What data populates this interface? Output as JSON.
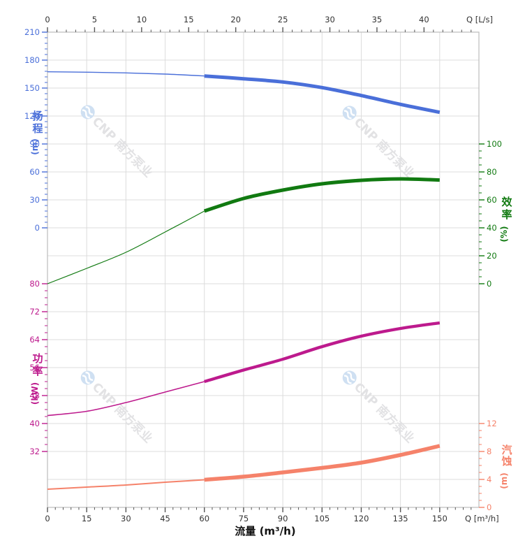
{
  "chart_data": {
    "type": "line",
    "x_range_m3h": [
      0,
      165
    ],
    "x_m3h": [
      0,
      15,
      30,
      45,
      60,
      75,
      90,
      105,
      120,
      135,
      150
    ],
    "bold_from_m3h": 60,
    "series": [
      {
        "id": "head",
        "name": "扬程",
        "unit": "(m)",
        "color": "#4a6fd9",
        "values": [
          167.5,
          167,
          166.3,
          165,
          163,
          160,
          156.5,
          150.5,
          142,
          132.5,
          124
        ]
      },
      {
        "id": "efficiency",
        "name": "效率",
        "unit": "(%)",
        "color": "#117a11",
        "values": [
          0,
          11,
          22.5,
          37,
          52,
          61,
          67,
          71.5,
          74,
          75,
          74.2
        ]
      },
      {
        "id": "power",
        "name": "功率",
        "unit": "(kW)",
        "color": "#bd1a8d",
        "values": [
          42.3,
          43.5,
          46,
          49,
          52,
          55.3,
          58.4,
          62,
          65,
          67.2,
          68.8
        ]
      },
      {
        "id": "npsh",
        "name": "汽蚀",
        "unit": "(m)",
        "color": "#f5826a",
        "values": [
          2.6,
          2.9,
          3.2,
          3.6,
          3.95,
          4.4,
          5,
          5.65,
          6.4,
          7.5,
          8.8
        ]
      }
    ],
    "axes": {
      "top": {
        "label": "Q [L/s]",
        "ticks": [
          0,
          5,
          10,
          15,
          20,
          25,
          30,
          35,
          40
        ],
        "minor_step": 1,
        "m3h_per_unit": 3.6
      },
      "bottom": {
        "label": "Q [m³/h]",
        "title": "流量 (m³/h)",
        "ticks": [
          0,
          15,
          30,
          45,
          60,
          75,
          90,
          105,
          120,
          135,
          150
        ],
        "minor_step": 3
      },
      "head": {
        "title": "扬程",
        "unit": "(m)",
        "color": "#4a6fd9",
        "ticks": [
          0,
          30,
          60,
          90,
          120,
          150,
          180,
          210
        ],
        "minor_step": 6,
        "range": [
          0,
          210
        ]
      },
      "efficiency": {
        "title": "效率",
        "unit": "(%)",
        "color": "#117a11",
        "ticks": [
          0,
          20,
          40,
          60,
          80,
          100
        ],
        "minor_step": 5,
        "range": [
          0,
          100
        ]
      },
      "power": {
        "title": "功率",
        "unit": "(kW)",
        "color": "#bd1a8d",
        "ticks": [
          32,
          40,
          48,
          56,
          64,
          72,
          80
        ],
        "minor_step": 2,
        "range": [
          32,
          80
        ]
      },
      "npsh": {
        "title": "汽蚀",
        "unit": "(m)",
        "color": "#f5826a",
        "ticks": [
          0,
          4,
          8,
          12
        ],
        "minor_step": 1,
        "range": [
          0,
          12
        ]
      }
    }
  },
  "watermark": {
    "text": "CNP 南方泵业",
    "logo": "cnp-drop-logo",
    "text_color": "#e2e2e4",
    "logo_color": "#cfe0f2",
    "rotation_deg": 45
  },
  "colors": {
    "grid": "#dcdcdc",
    "border": "#bcbcbc",
    "black_axis_text": "#333333",
    "black_tick": "#555555",
    "background": "#ffffff"
  }
}
